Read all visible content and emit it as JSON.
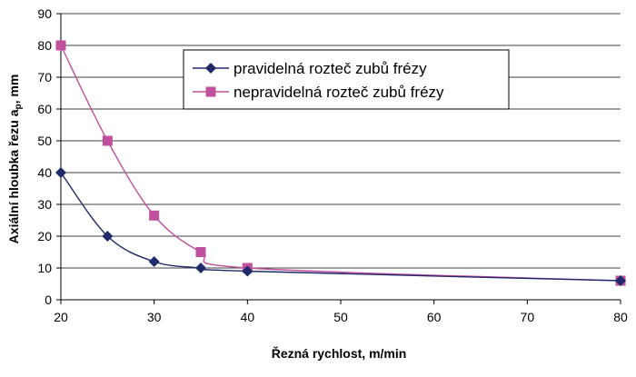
{
  "chart_data": {
    "type": "line",
    "xlabel": "Řezná rychlost, m/min",
    "ylabel_main": "Axiální hloubka řezu a",
    "ylabel_sub": "p",
    "ylabel_tail": ", mm",
    "xlim": [
      20,
      80
    ],
    "ylim": [
      0,
      90
    ],
    "xticks": [
      "20",
      "30",
      "40",
      "50",
      "60",
      "70",
      "80"
    ],
    "yticks": [
      "0",
      "10",
      "20",
      "30",
      "40",
      "50",
      "60",
      "70",
      "80",
      "90"
    ],
    "grid": true,
    "legend_position": "top-right",
    "series": [
      {
        "name": "pravidelná rozteč zubů frézy",
        "color": "#1F2A6B",
        "marker": "diamond",
        "x": [
          20,
          25,
          30,
          35,
          40,
          80
        ],
        "y": [
          40,
          20,
          12,
          10,
          9,
          6
        ]
      },
      {
        "name": "nepravidelná rozteč zubů frézy",
        "color": "#C0509C",
        "marker": "square",
        "x": [
          20,
          25,
          30,
          35,
          40,
          80
        ],
        "y": [
          80,
          50,
          26.5,
          15,
          10,
          6
        ]
      }
    ]
  }
}
